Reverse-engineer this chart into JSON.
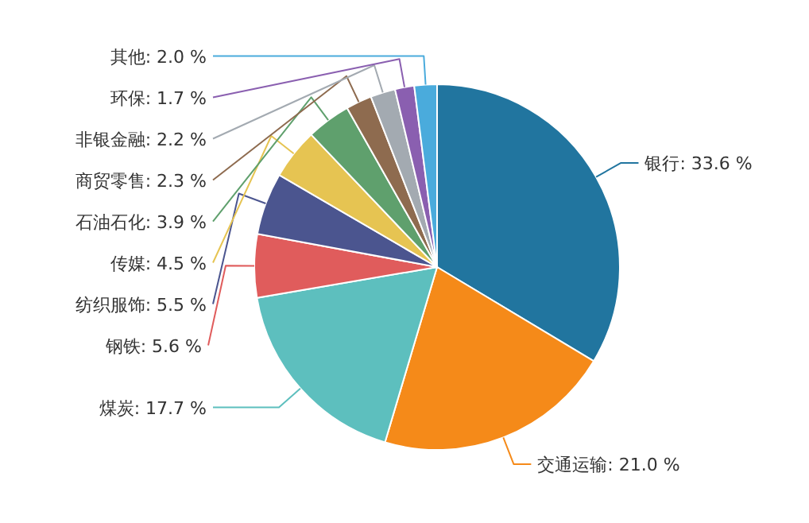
{
  "chart_data": {
    "type": "pie",
    "categories": [
      "银行",
      "交通运输",
      "煤炭",
      "钢铁",
      "纺织服饰",
      "传媒",
      "石油石化",
      "商贸零售",
      "非银金融",
      "环保",
      "其他"
    ],
    "values": [
      33.6,
      21.0,
      17.7,
      5.6,
      5.5,
      4.5,
      3.9,
      2.3,
      2.2,
      1.7,
      2.0
    ],
    "colors": [
      "#21759f",
      "#f58a19",
      "#5dbfbe",
      "#e05c5c",
      "#4b558f",
      "#e6c452",
      "#5fa06d",
      "#8e6b4f",
      "#a3aab1",
      "#8a5fb0",
      "#4aabdc"
    ],
    "value_labels": [
      "33.6 %",
      "21.0 %",
      "17.7 %",
      "5.6 %",
      "5.5 %",
      "4.5 %",
      "3.9 %",
      "2.3 %",
      "2.2 %",
      "1.7 %",
      "2.0 %"
    ]
  }
}
